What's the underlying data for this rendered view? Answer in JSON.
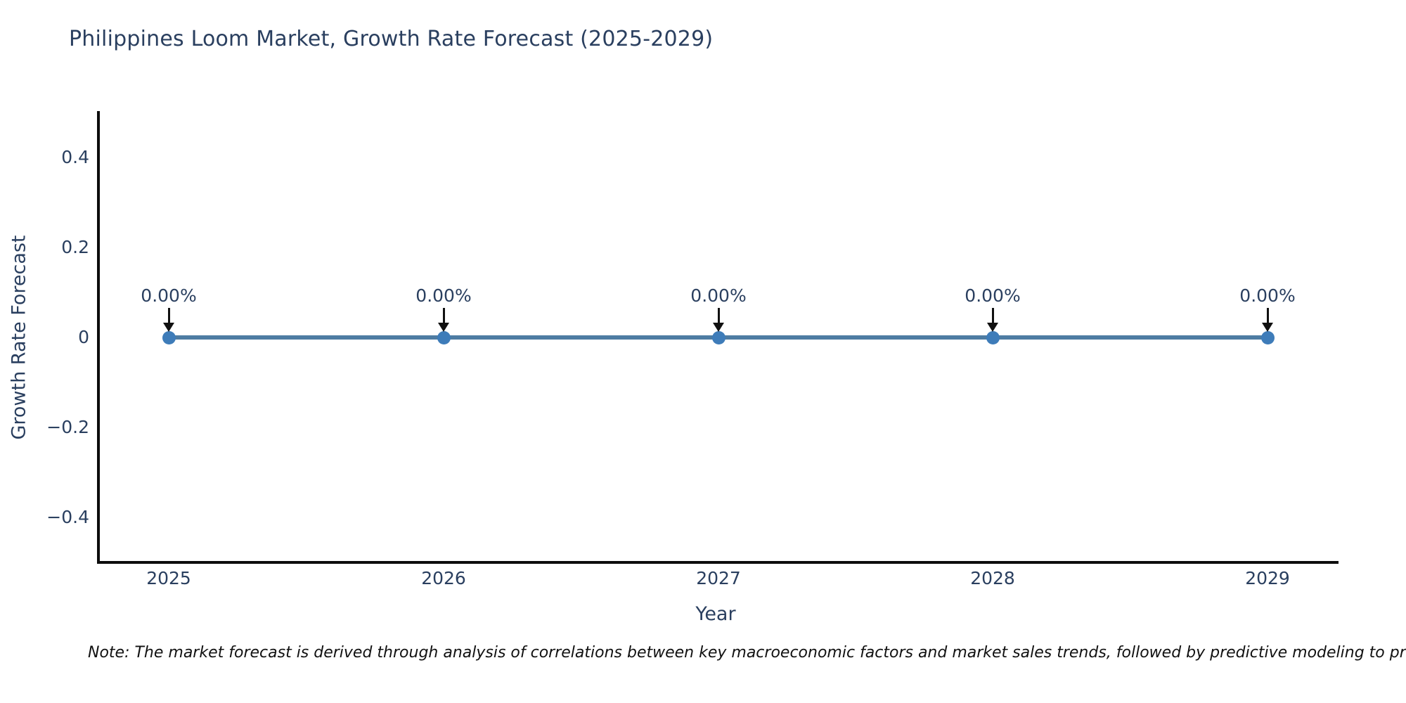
{
  "title": "Philippines Loom Market, Growth Rate Forecast (2025-2029)",
  "note": "Note: The market forecast is derived through analysis of correlations between key macroeconomic factors and market sales trends, followed by predictive modeling to project future sa",
  "chart_data": {
    "type": "line",
    "title": "Philippines Loom Market, Growth Rate Forecast (2025-2029)",
    "xlabel": "Year",
    "ylabel": "Growth Rate Forecast",
    "x": [
      2025,
      2026,
      2027,
      2028,
      2029
    ],
    "y": [
      0,
      0,
      0,
      0,
      0
    ],
    "point_labels": [
      "0.00%",
      "0.00%",
      "0.00%",
      "0.00%",
      "0.00%"
    ],
    "xticks": [
      "2025",
      "2026",
      "2027",
      "2028",
      "2029"
    ],
    "yticks": [
      "0.4",
      "0.2",
      "0",
      "−0.2",
      "−0.4"
    ],
    "ylim": [
      -0.5,
      0.5
    ],
    "xlim": [
      2024.75,
      2029.25
    ],
    "grid": false,
    "legend": "none",
    "text_color": "#2a3f5f",
    "axis_color": "#0d0d0d",
    "line_color": "#4e7ca3",
    "marker_color": "#3e7cb9",
    "annotation_arrow_color": "#111111"
  }
}
